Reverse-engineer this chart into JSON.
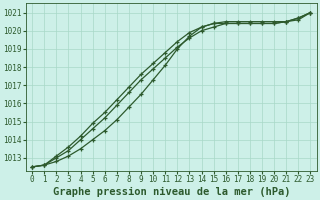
{
  "title": "Graphe pression niveau de la mer (hPa)",
  "bg_color": "#cdf0e8",
  "grid_color": "#a8d8c8",
  "line_color": "#2d5a2d",
  "ylim": [
    1012.3,
    1021.5
  ],
  "xlim": [
    -0.5,
    23.5
  ],
  "yticks": [
    1013,
    1014,
    1015,
    1016,
    1017,
    1018,
    1019,
    1020,
    1021
  ],
  "xticks": [
    0,
    1,
    2,
    3,
    4,
    5,
    6,
    7,
    8,
    9,
    10,
    11,
    12,
    13,
    14,
    15,
    16,
    17,
    18,
    19,
    20,
    21,
    22,
    23
  ],
  "line1_x": [
    0,
    1,
    2,
    3,
    4,
    5,
    6,
    7,
    8,
    9,
    10,
    11,
    12,
    13,
    14,
    15,
    16,
    17,
    18,
    19,
    20,
    21,
    22,
    23
  ],
  "line1_y": [
    1012.5,
    1012.6,
    1012.8,
    1013.1,
    1013.5,
    1014.0,
    1014.5,
    1015.1,
    1015.8,
    1016.5,
    1017.3,
    1018.1,
    1019.0,
    1019.7,
    1020.2,
    1020.4,
    1020.4,
    1020.4,
    1020.4,
    1020.4,
    1020.4,
    1020.5,
    1020.7,
    1021.0
  ],
  "line2_x": [
    0,
    1,
    2,
    3,
    4,
    5,
    6,
    7,
    8,
    9,
    10,
    11,
    12,
    13,
    14,
    15,
    16,
    17,
    18,
    19,
    20,
    21,
    22,
    23
  ],
  "line2_y": [
    1012.5,
    1012.6,
    1013.1,
    1013.6,
    1014.2,
    1014.9,
    1015.5,
    1016.2,
    1016.9,
    1017.6,
    1018.2,
    1018.8,
    1019.4,
    1019.9,
    1020.2,
    1020.4,
    1020.5,
    1020.5,
    1020.5,
    1020.5,
    1020.5,
    1020.5,
    1020.7,
    1021.0
  ],
  "line3_x": [
    0,
    1,
    2,
    3,
    4,
    5,
    6,
    7,
    8,
    9,
    10,
    11,
    12,
    13,
    14,
    15,
    16,
    17,
    18,
    19,
    20,
    21,
    22,
    23
  ],
  "line3_y": [
    1012.5,
    1012.6,
    1013.0,
    1013.4,
    1014.0,
    1014.6,
    1015.2,
    1015.9,
    1016.6,
    1017.3,
    1017.9,
    1018.5,
    1019.1,
    1019.6,
    1020.0,
    1020.2,
    1020.4,
    1020.4,
    1020.4,
    1020.4,
    1020.4,
    1020.5,
    1020.6,
    1021.0
  ],
  "title_fontsize": 7.5,
  "tick_fontsize": 5.5,
  "line_width": 0.9,
  "marker_size": 3.0
}
